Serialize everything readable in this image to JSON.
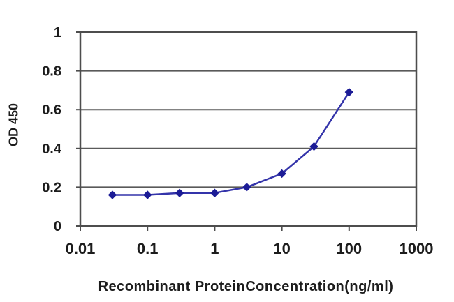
{
  "figure": {
    "background": "#ffffff"
  },
  "chart_data": {
    "type": "line",
    "x_scale": "log",
    "x": [
      0.03,
      0.1,
      0.3,
      1,
      3,
      10,
      30,
      100
    ],
    "series": [
      {
        "name": "OD 450",
        "values": [
          0.16,
          0.16,
          0.17,
          0.17,
          0.2,
          0.27,
          0.41,
          0.69
        ]
      }
    ],
    "xlabel": "Recombinant ProteinConcentration(ng/ml)",
    "ylabel": "OD 450",
    "xlim": [
      0.01,
      1000
    ],
    "ylim": [
      0,
      1
    ],
    "x_ticks": {
      "values": [
        0.01,
        0.1,
        1,
        10,
        100,
        1000
      ],
      "labels": [
        "0.01",
        "0.1",
        "1",
        "10",
        "100",
        "1000"
      ]
    },
    "y_ticks": {
      "values": [
        0,
        0.2,
        0.4,
        0.6,
        0.8,
        1
      ],
      "labels": [
        "0",
        "0.2",
        "0.4",
        "0.6",
        "0.8",
        "1"
      ]
    },
    "grid": "horizontal-only",
    "legend": "none",
    "marker": "diamond",
    "colors": {
      "line": "#3434aa",
      "marker": "#1c1c96",
      "axis": "#4d4d4d",
      "grid": "#5a5a5a",
      "text": "#1c1c1c",
      "background": "#ffffff"
    }
  }
}
